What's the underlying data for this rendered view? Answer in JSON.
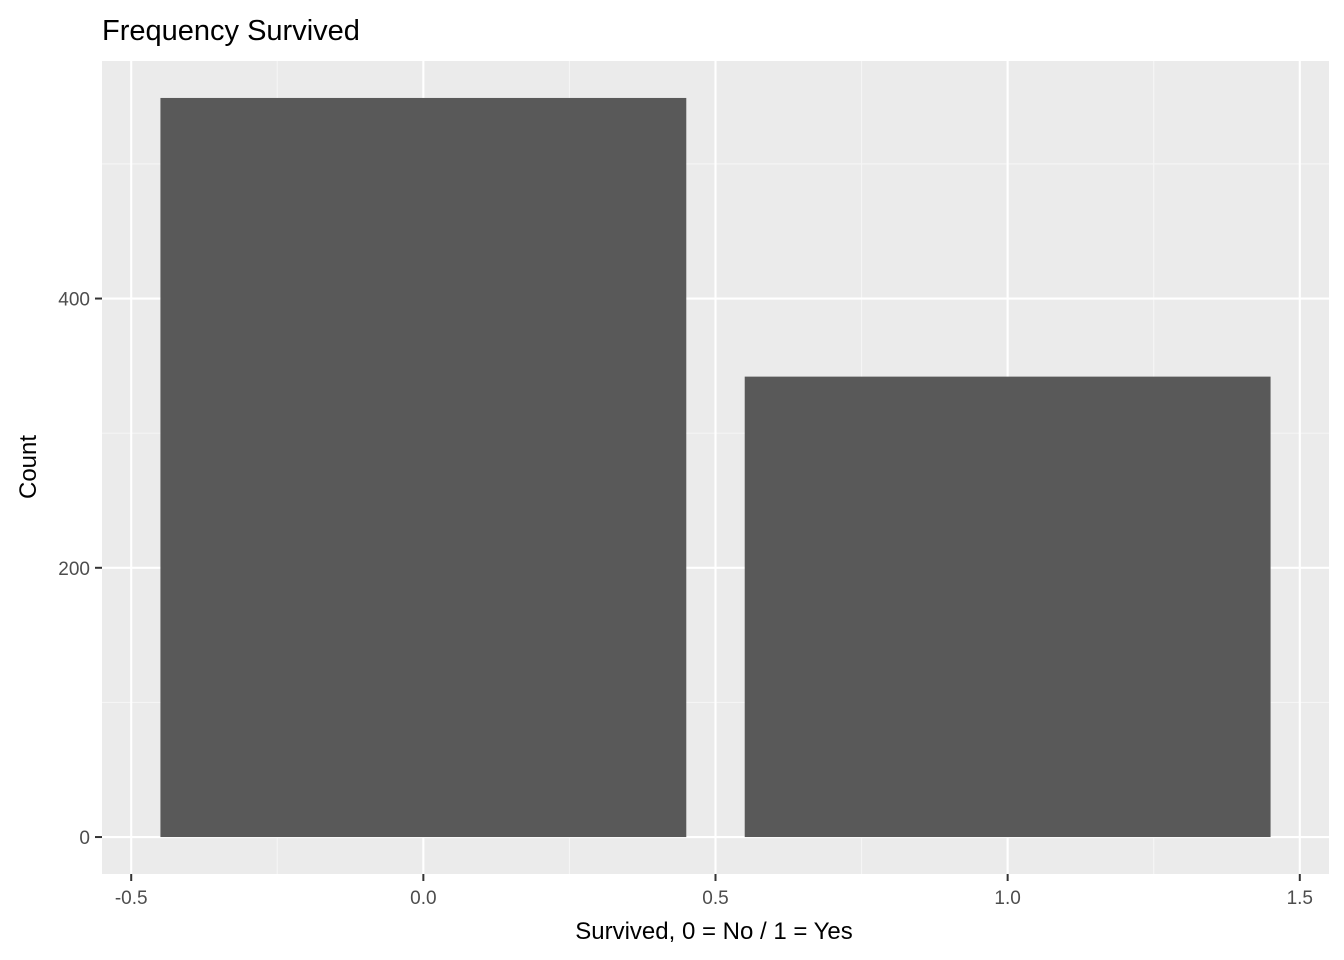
{
  "chart_data": {
    "type": "bar",
    "title": "Frequency Survived",
    "xlabel": "Survived, 0 = No / 1 = Yes",
    "ylabel": "Count",
    "bars": [
      {
        "x": 0,
        "value": 549,
        "xmin": -0.45,
        "xmax": 0.45
      },
      {
        "x": 1,
        "value": 342,
        "xmin": 0.55,
        "xmax": 1.45
      }
    ],
    "xlim": [
      -0.55,
      1.55
    ],
    "ylim": [
      -27.45,
      576.45
    ],
    "x_ticks": [
      -0.5,
      0.0,
      0.5,
      1.0,
      1.5
    ],
    "x_tick_labels": [
      "-0.5",
      "0.0",
      "0.5",
      "1.0",
      "1.5"
    ],
    "y_ticks": [
      0,
      200,
      400
    ],
    "y_tick_labels": [
      "0",
      "200",
      "400"
    ],
    "grid": true,
    "colors": {
      "bar": "#595959",
      "panel_background": "#ebebeb",
      "grid_major": "#ffffff",
      "grid_minor": "#f5f5f5"
    }
  }
}
